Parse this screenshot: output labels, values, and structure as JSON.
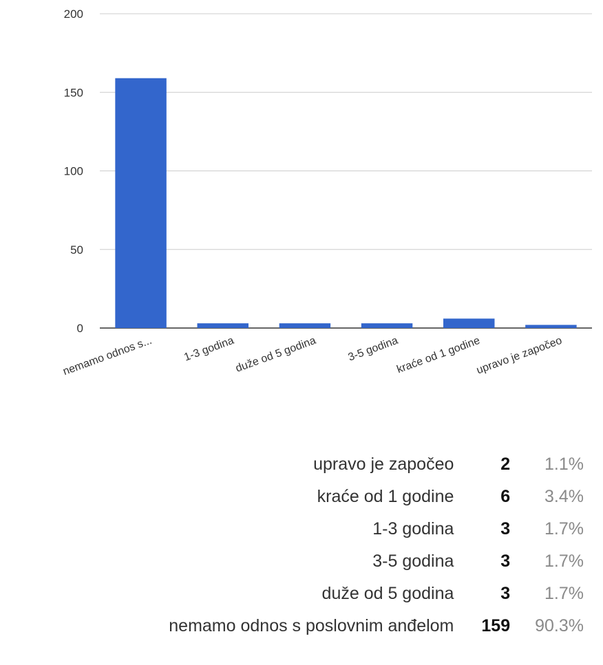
{
  "chart_data": {
    "type": "bar",
    "categories": [
      "nemamo odnos s...",
      "1-3 godina",
      "duže od 5 godina",
      "3-5 godina",
      "kraće od 1 godine",
      "upravo je započeo"
    ],
    "values": [
      159,
      3,
      3,
      3,
      6,
      2
    ],
    "ylim": [
      0,
      200
    ],
    "yticks": [
      0,
      50,
      100,
      150,
      200
    ],
    "grid": true,
    "bar_color": "#3366cc",
    "title": "",
    "xlabel": "",
    "ylabel": ""
  },
  "summary": {
    "rows": [
      {
        "label": "upravo je započeo",
        "count": "2",
        "percent": "1.1%"
      },
      {
        "label": "kraće od 1 godine",
        "count": "6",
        "percent": "3.4%"
      },
      {
        "label": "1-3 godina",
        "count": "3",
        "percent": "1.7%"
      },
      {
        "label": "3-5 godina",
        "count": "3",
        "percent": "1.7%"
      },
      {
        "label": "duže od 5 godina",
        "count": "3",
        "percent": "1.7%"
      },
      {
        "label": "nemamo odnos s poslovnim anđelom",
        "count": "159",
        "percent": "90.3%"
      }
    ]
  }
}
